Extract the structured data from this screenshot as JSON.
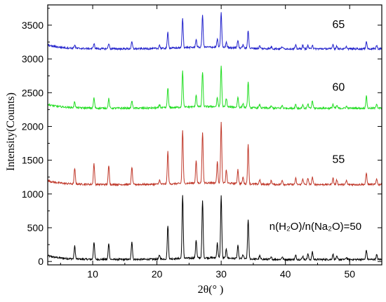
{
  "chart_data": {
    "type": "line",
    "xlabel": "2θ(° )",
    "ylabel": "Intensity(Counts)",
    "xlim": [
      3,
      55
    ],
    "ylim": [
      -50,
      3800
    ],
    "x_ticks": [
      10,
      20,
      30,
      40,
      50
    ],
    "y_ticks": [
      0,
      500,
      1000,
      1500,
      2000,
      2500,
      3000,
      3500
    ],
    "grid": false,
    "peaks": [
      {
        "x": 7.2,
        "h": 1.0
      },
      {
        "x": 10.2,
        "h": 1.0
      },
      {
        "x": 12.5,
        "h": 0.95
      },
      {
        "x": 16.1,
        "h": 1.0
      },
      {
        "x": 20.4,
        "h": 0.25
      },
      {
        "x": 21.7,
        "h": 0.75
      },
      {
        "x": 24.0,
        "h": 1.0
      },
      {
        "x": 26.1,
        "h": 0.7
      },
      {
        "x": 27.1,
        "h": 1.0
      },
      {
        "x": 29.4,
        "h": 0.6
      },
      {
        "x": 30.0,
        "h": 1.0
      },
      {
        "x": 30.8,
        "h": 0.35
      },
      {
        "x": 32.6,
        "h": 0.4
      },
      {
        "x": 33.4,
        "h": 0.25
      },
      {
        "x": 34.2,
        "h": 0.65
      },
      {
        "x": 36.0,
        "h": 0.18
      },
      {
        "x": 37.8,
        "h": 0.2
      },
      {
        "x": 39.5,
        "h": 0.2
      },
      {
        "x": 41.6,
        "h": 0.22
      },
      {
        "x": 42.7,
        "h": 0.2
      },
      {
        "x": 43.5,
        "h": 0.25
      },
      {
        "x": 44.2,
        "h": 0.28
      },
      {
        "x": 47.4,
        "h": 0.25
      },
      {
        "x": 48.0,
        "h": 0.2
      },
      {
        "x": 49.5,
        "h": 0.2
      },
      {
        "x": 52.6,
        "h": 0.35
      },
      {
        "x": 54.2,
        "h": 0.25
      }
    ],
    "series": [
      {
        "label": "n(H₂O)/n(Na₂O)=50",
        "label_pos": [
          37.5,
          470
        ],
        "color": "#000000",
        "baseline": 30,
        "peak_values": [
          220,
          290,
          270,
          300,
          90,
          530,
          960,
          300,
          880,
          250,
          950,
          160,
          220,
          90,
          620,
          80,
          60,
          70,
          90,
          80,
          110,
          140,
          110,
          70,
          60,
          170,
          100
        ]
      },
      {
        "label": "55",
        "label_pos": [
          47.3,
          1460
        ],
        "color": "#c0392b",
        "baseline": 1140,
        "peak_values": [
          1370,
          1450,
          1420,
          1400,
          1200,
          1620,
          1930,
          1470,
          1900,
          1450,
          2040,
          1340,
          1350,
          1240,
          1720,
          1210,
          1200,
          1210,
          1230,
          1230,
          1240,
          1250,
          1240,
          1210,
          1200,
          1310,
          1230
        ]
      },
      {
        "label": "60",
        "label_pos": [
          47.3,
          2530
        ],
        "color": "#22dd22",
        "baseline": 2270,
        "peak_values": [
          2360,
          2420,
          2410,
          2380,
          2320,
          2570,
          2800,
          2450,
          2790,
          2400,
          2880,
          2400,
          2420,
          2330,
          2650,
          2320,
          2300,
          2310,
          2330,
          2320,
          2330,
          2380,
          2330,
          2310,
          2300,
          2450,
          2340
        ]
      },
      {
        "label": "65",
        "label_pos": [
          47.3,
          3460
        ],
        "color": "#2222cc",
        "baseline": 3150,
        "peak_values": [
          3200,
          3230,
          3230,
          3250,
          3200,
          3390,
          3580,
          3270,
          3620,
          3270,
          3660,
          3230,
          3260,
          3200,
          3420,
          3190,
          3180,
          3180,
          3200,
          3200,
          3200,
          3210,
          3220,
          3190,
          3180,
          3260,
          3200
        ]
      }
    ]
  }
}
